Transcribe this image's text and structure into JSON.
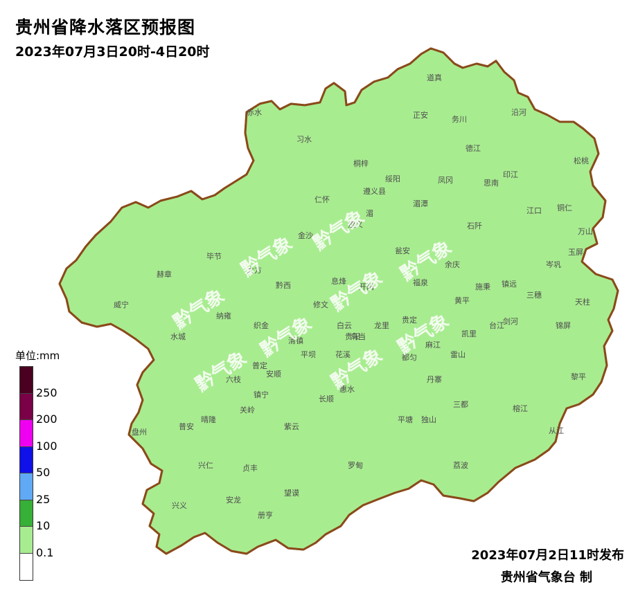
{
  "header": {
    "title": "贵州省降水落区预报图",
    "period": "2023年07月3日20时-4日20时"
  },
  "legend": {
    "unit": "单位:mm",
    "bands": [
      {
        "color": "#4a0020",
        "label": ""
      },
      {
        "color": "#7a0048",
        "label": "250"
      },
      {
        "color": "#f000f0",
        "label": "200"
      },
      {
        "color": "#1010e8",
        "label": "100"
      },
      {
        "color": "#60aaf5",
        "label": "50"
      },
      {
        "color": "#36b036",
        "label": "25"
      },
      {
        "color": "#a8ec90",
        "label": "10"
      },
      {
        "color": "#ffffff",
        "label": "0.1"
      }
    ]
  },
  "cities": [
    "赤水",
    "习水",
    "桐梓",
    "道真",
    "正安",
    "务川",
    "沿河",
    "仁怀",
    "绥阳",
    "湄潭",
    "凤冈",
    "德江",
    "印江",
    "松桃",
    "江口",
    "铜仁",
    "万山",
    "石阡",
    "思南",
    "余庆",
    "施秉",
    "镇远",
    "岑巩",
    "玉屏",
    "三穗",
    "天柱",
    "锦屏",
    "黎平",
    "从江",
    "榕江",
    "雷山",
    "剑河",
    "台江",
    "黄平",
    "凯里",
    "麻江",
    "丹寨",
    "三都",
    "独山",
    "荔波",
    "平塘",
    "罗甸",
    "惠水",
    "长顺",
    "紫云",
    "望谟",
    "册亨",
    "安龙",
    "兴义",
    "兴仁",
    "贞丰",
    "盘州",
    "普安",
    "晴隆",
    "关岭",
    "六枝",
    "镇宁",
    "普定",
    "安顺",
    "平坝",
    "清镇",
    "织金",
    "纳雍",
    "水城",
    "威宁",
    "赫章",
    "毕节",
    "大方",
    "黔西",
    "金沙",
    "遵义",
    "修文",
    "息烽",
    "开阳",
    "瓮安",
    "福泉",
    "贵阳",
    "龙里",
    "贵定",
    "都匀",
    "花溪",
    "白云",
    "乌当",
    "遵义县",
    "湄"
  ],
  "watermark": "黔气象",
  "footer": {
    "issued": "2023年07月2日11时发布",
    "agency": "贵州省气象台 制"
  }
}
